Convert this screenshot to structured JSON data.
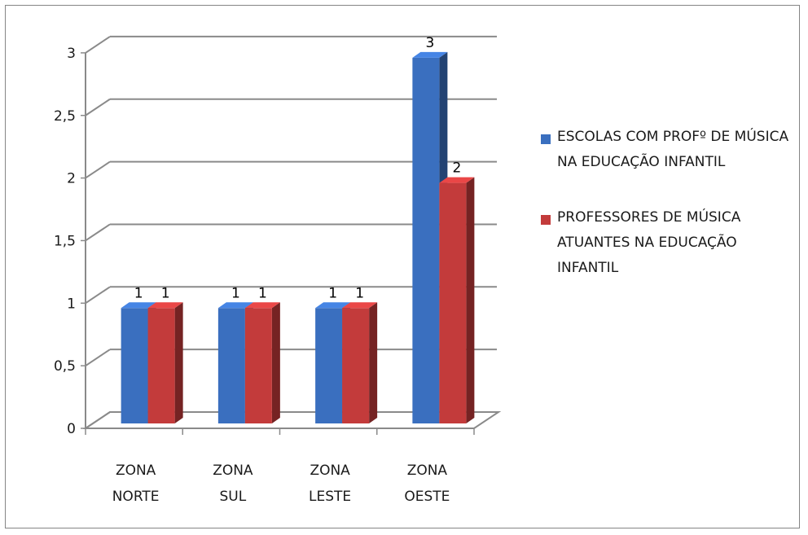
{
  "chart_data": {
    "type": "bar",
    "categories": [
      "ZONA NORTE",
      "ZONA SUL",
      "ZONA LESTE",
      "ZONA OESTE"
    ],
    "series": [
      {
        "name": "ESCOLAS COM PROFº DE MÚSICA NA EDUCAÇÃO INFANTIL",
        "values": [
          1,
          1,
          1,
          3
        ],
        "color": "#3a6fbf"
      },
      {
        "name": "PROFESSORES DE MÚSICA ATUANTES NA EDUCAÇÃO INFANTIL",
        "values": [
          1,
          1,
          1,
          2
        ],
        "color": "#c33b3b"
      }
    ],
    "y_ticks": [
      "0",
      "0,5",
      "1",
      "1,5",
      "2",
      "2,5",
      "3"
    ],
    "ylim": [
      0,
      3
    ],
    "grid": true,
    "style": "3d-clustered-column",
    "legend_position": "right",
    "data_labels": [
      [
        "1",
        "1",
        "1",
        "3"
      ],
      [
        "1",
        "1",
        "1",
        "2"
      ]
    ]
  }
}
